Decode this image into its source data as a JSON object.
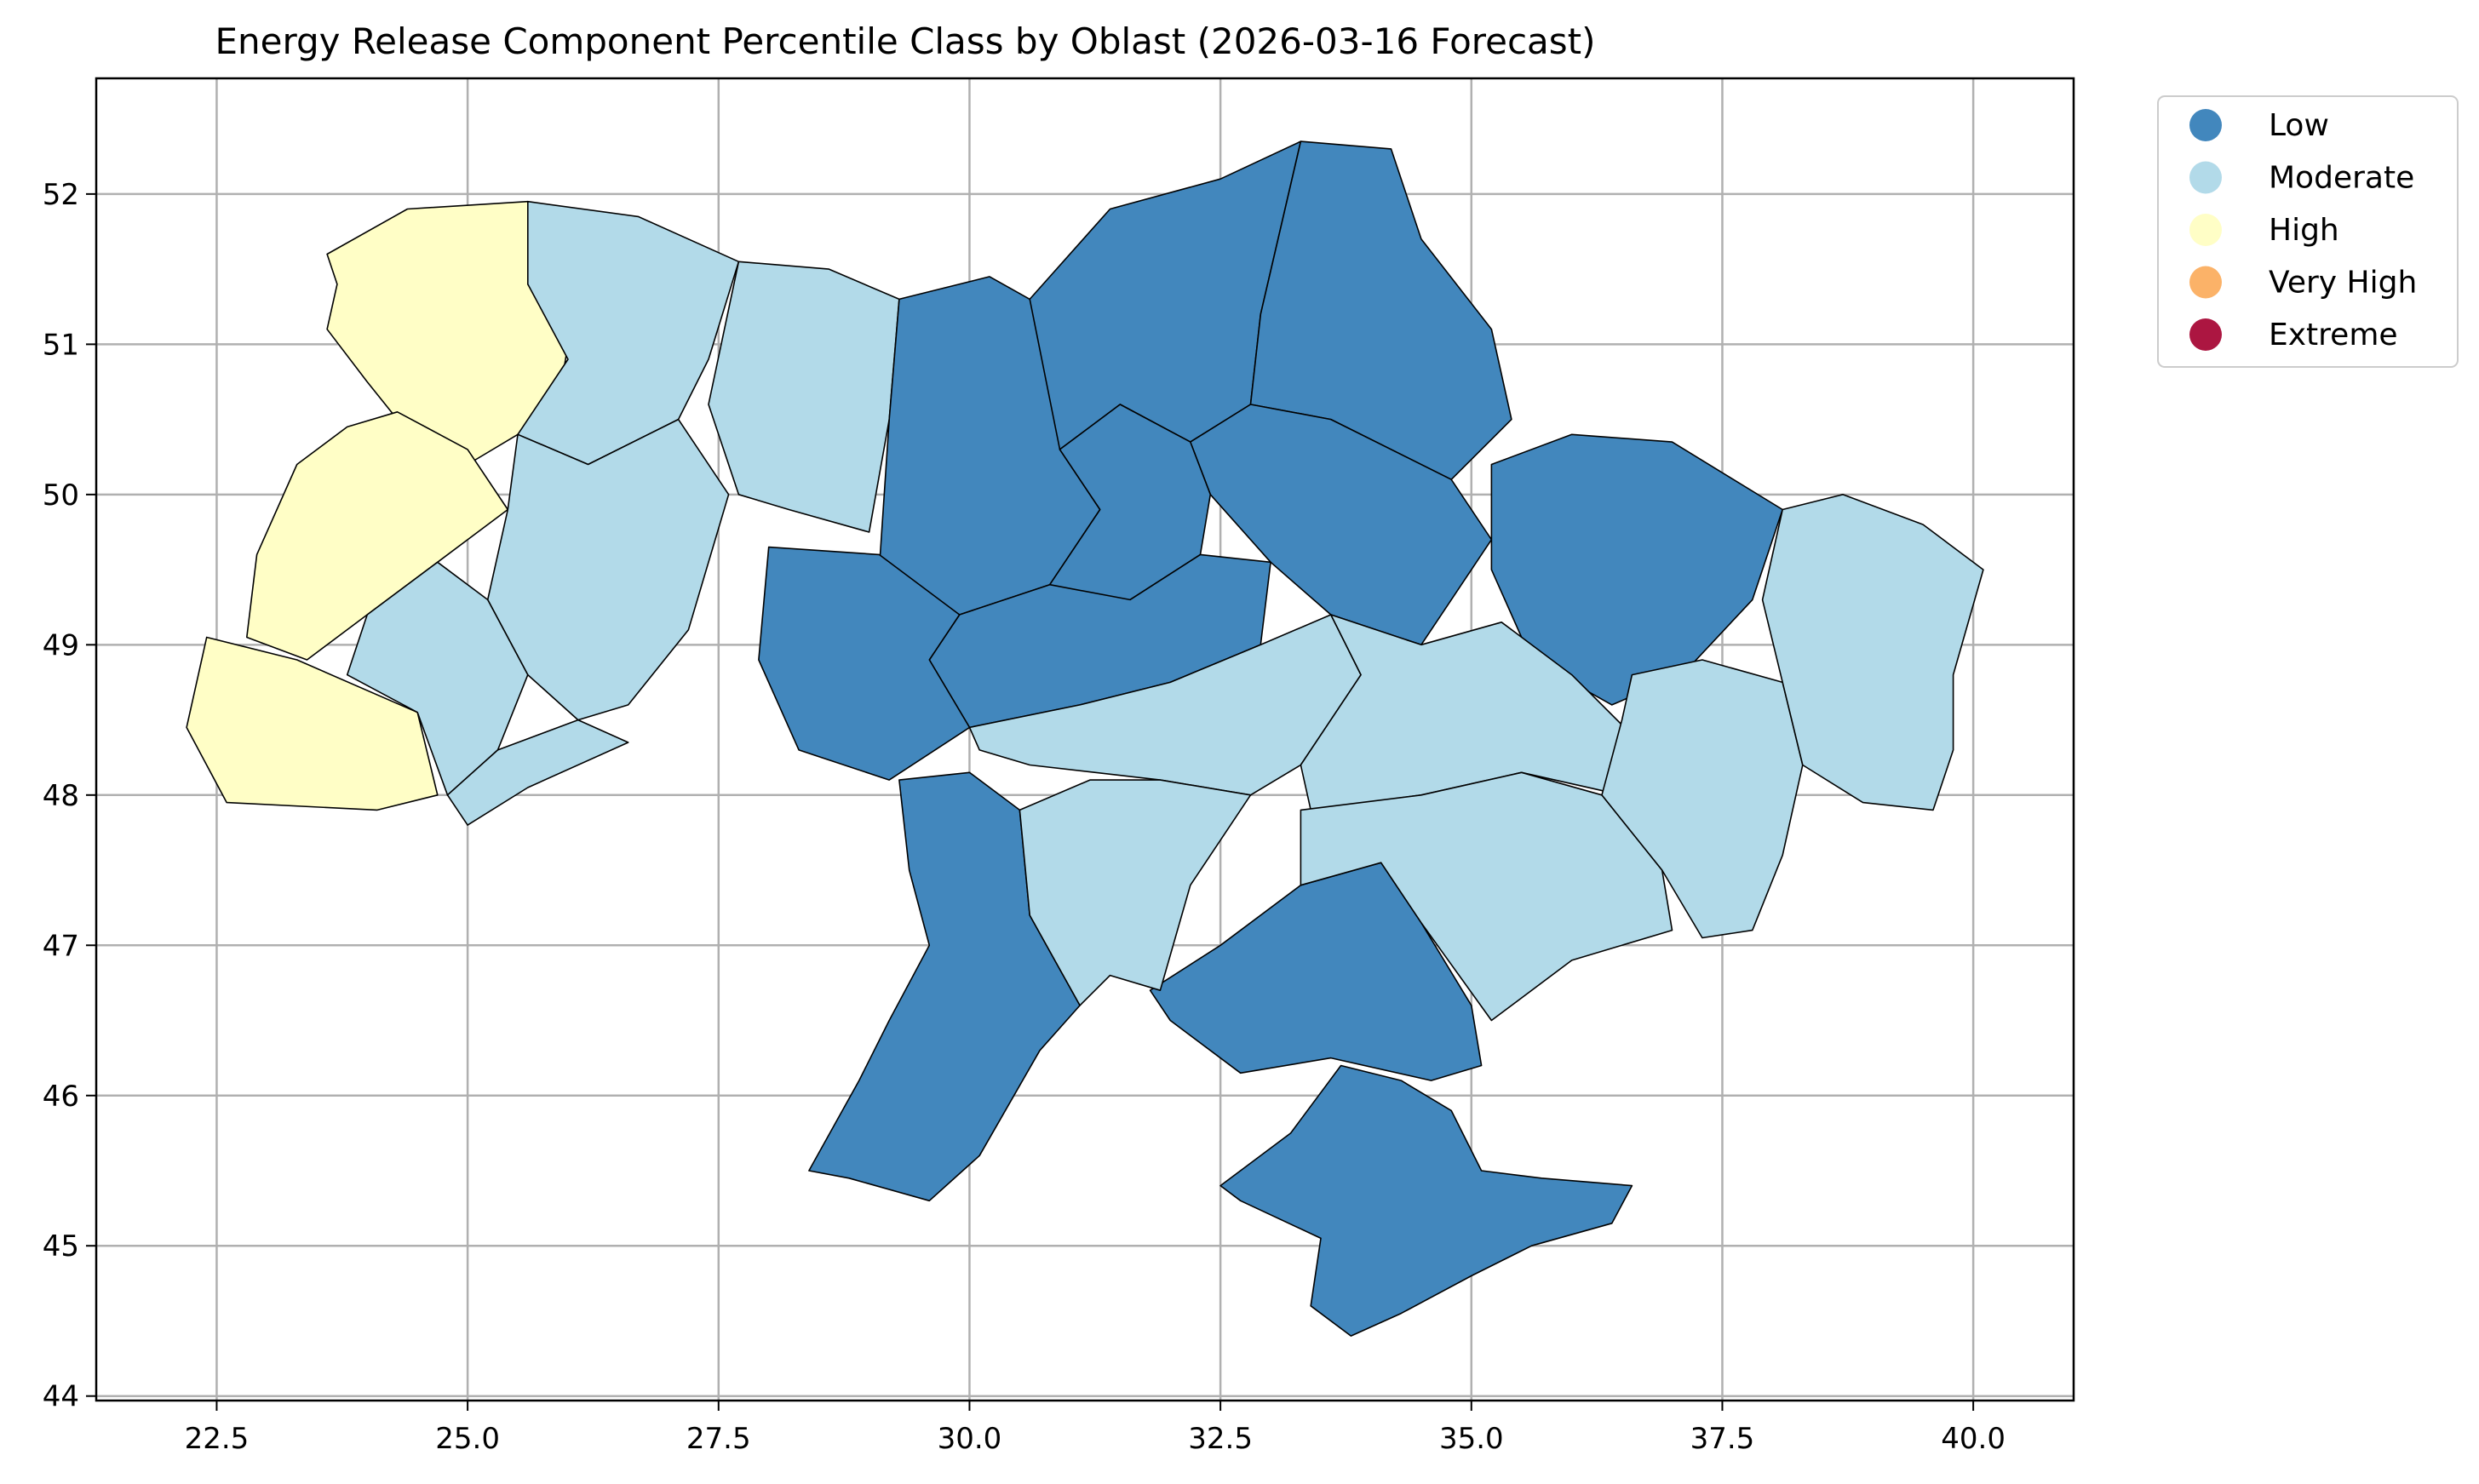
{
  "title": "Energy Release Component Percentile Class by Oblast (2026-03-16 Forecast)",
  "chart_data": {
    "type": "choropleth",
    "title": "Energy Release Component Percentile Class by Oblast (2026-03-16 Forecast)",
    "xlim": [
      21.3,
      41.0
    ],
    "ylim": [
      43.97,
      52.77
    ],
    "x_ticks": [
      22.5,
      25.0,
      27.5,
      30.0,
      32.5,
      35.0,
      37.5,
      40.0
    ],
    "x_tick_labels": [
      "22.5",
      "25.0",
      "27.5",
      "30.0",
      "32.5",
      "35.0",
      "37.5",
      "40.0"
    ],
    "y_ticks": [
      44,
      45,
      46,
      47,
      48,
      49,
      50,
      51,
      52
    ],
    "y_tick_labels": [
      "44",
      "45",
      "46",
      "47",
      "48",
      "49",
      "50",
      "51",
      "52"
    ],
    "grid": true,
    "legend": {
      "placement": "outside-top-right",
      "entries": [
        {
          "label": "Low",
          "color": "#4287BD"
        },
        {
          "label": "Moderate",
          "color": "#B2DAE9"
        },
        {
          "label": "High",
          "color": "#FFFEC6"
        },
        {
          "label": "Very High",
          "color": "#FBB268"
        },
        {
          "label": "Extreme",
          "color": "#AC1641"
        }
      ]
    },
    "class_colors": {
      "Low": "#4287BD",
      "Moderate": "#B2DAE9",
      "High": "#FFFEC6",
      "Very High": "#FBB268",
      "Extreme": "#AC1641"
    },
    "regions": [
      {
        "class": "High",
        "outline": [
          [
            23.6,
            51.6
          ],
          [
            24.4,
            51.9
          ],
          [
            25.6,
            51.95
          ],
          [
            25.6,
            51.4
          ],
          [
            26.0,
            51.0
          ],
          [
            25.9,
            50.6
          ],
          [
            25.5,
            50.4
          ],
          [
            25.0,
            50.2
          ],
          [
            24.3,
            50.5
          ],
          [
            24.0,
            50.75
          ],
          [
            23.6,
            51.1
          ],
          [
            23.7,
            51.4
          ]
        ]
      },
      {
        "class": "High",
        "outline": [
          [
            23.8,
            50.45
          ],
          [
            24.3,
            50.55
          ],
          [
            25.0,
            50.3
          ],
          [
            25.4,
            49.9
          ],
          [
            24.7,
            49.55
          ],
          [
            24.0,
            49.2
          ],
          [
            23.4,
            48.9
          ],
          [
            22.8,
            49.05
          ],
          [
            22.9,
            49.6
          ],
          [
            23.3,
            50.2
          ]
        ]
      },
      {
        "class": "High",
        "outline": [
          [
            22.4,
            49.05
          ],
          [
            23.3,
            48.9
          ],
          [
            24.5,
            48.55
          ],
          [
            24.7,
            48.0
          ],
          [
            24.1,
            47.9
          ],
          [
            22.6,
            47.95
          ],
          [
            22.2,
            48.45
          ]
        ]
      },
      {
        "class": "Moderate",
        "outline": [
          [
            25.6,
            51.95
          ],
          [
            26.7,
            51.85
          ],
          [
            27.7,
            51.55
          ],
          [
            27.4,
            50.9
          ],
          [
            27.1,
            50.5
          ],
          [
            26.2,
            50.2
          ],
          [
            25.5,
            50.4
          ],
          [
            26.0,
            50.9
          ],
          [
            25.6,
            51.4
          ]
        ]
      },
      {
        "class": "Moderate",
        "outline": [
          [
            27.7,
            51.55
          ],
          [
            28.6,
            51.5
          ],
          [
            29.3,
            51.3
          ],
          [
            29.2,
            50.5
          ],
          [
            29.0,
            49.75
          ],
          [
            28.2,
            49.9
          ],
          [
            27.7,
            50.0
          ],
          [
            27.4,
            50.6
          ]
        ]
      },
      {
        "class": "Moderate",
        "outline": [
          [
            25.5,
            50.4
          ],
          [
            26.2,
            50.2
          ],
          [
            27.1,
            50.5
          ],
          [
            27.6,
            50.0
          ],
          [
            27.2,
            49.1
          ],
          [
            26.6,
            48.6
          ],
          [
            26.1,
            48.5
          ],
          [
            25.6,
            48.8
          ],
          [
            25.2,
            49.3
          ],
          [
            25.4,
            49.9
          ]
        ]
      },
      {
        "class": "Moderate",
        "outline": [
          [
            24.0,
            49.2
          ],
          [
            24.7,
            49.55
          ],
          [
            25.2,
            49.3
          ],
          [
            25.6,
            48.8
          ],
          [
            25.3,
            48.3
          ],
          [
            24.8,
            48.0
          ],
          [
            24.5,
            48.55
          ],
          [
            23.8,
            48.8
          ]
        ]
      },
      {
        "class": "Moderate",
        "outline": [
          [
            24.8,
            48.0
          ],
          [
            25.3,
            48.3
          ],
          [
            26.1,
            48.5
          ],
          [
            26.6,
            48.35
          ],
          [
            25.6,
            48.05
          ],
          [
            25.0,
            47.8
          ]
        ]
      },
      {
        "class": "Low",
        "outline": [
          [
            29.3,
            51.3
          ],
          [
            30.2,
            51.45
          ],
          [
            30.6,
            51.3
          ],
          [
            31.0,
            50.8
          ],
          [
            30.9,
            50.3
          ],
          [
            31.3,
            49.9
          ],
          [
            30.8,
            49.4
          ],
          [
            29.9,
            49.2
          ],
          [
            29.1,
            49.5
          ],
          [
            29.2,
            50.5
          ]
        ]
      },
      {
        "class": "Low",
        "outline": [
          [
            30.6,
            51.3
          ],
          [
            31.4,
            51.9
          ],
          [
            32.5,
            52.1
          ],
          [
            33.3,
            52.35
          ],
          [
            32.9,
            51.2
          ],
          [
            32.8,
            50.6
          ],
          [
            32.2,
            50.35
          ],
          [
            31.5,
            50.6
          ],
          [
            30.9,
            50.3
          ]
        ]
      },
      {
        "class": "Low",
        "outline": [
          [
            33.3,
            52.35
          ],
          [
            34.2,
            52.3
          ],
          [
            34.5,
            51.7
          ],
          [
            35.2,
            51.1
          ],
          [
            35.4,
            50.5
          ],
          [
            34.8,
            50.1
          ],
          [
            33.6,
            50.5
          ],
          [
            32.8,
            50.6
          ],
          [
            32.9,
            51.2
          ]
        ]
      },
      {
        "class": "Low",
        "outline": [
          [
            32.2,
            50.35
          ],
          [
            32.8,
            50.6
          ],
          [
            33.6,
            50.5
          ],
          [
            34.8,
            50.1
          ],
          [
            35.2,
            49.7
          ],
          [
            34.5,
            49.0
          ],
          [
            33.6,
            49.2
          ],
          [
            33.0,
            49.55
          ],
          [
            32.4,
            50.0
          ]
        ]
      },
      {
        "class": "Low",
        "outline": [
          [
            35.2,
            50.2
          ],
          [
            36.0,
            50.4
          ],
          [
            37.0,
            50.35
          ],
          [
            38.1,
            49.9
          ],
          [
            37.8,
            49.3
          ],
          [
            37.1,
            48.8
          ],
          [
            36.4,
            48.6
          ],
          [
            35.6,
            48.9
          ],
          [
            35.2,
            49.5
          ]
        ]
      },
      {
        "class": "Low",
        "outline": [
          [
            30.9,
            50.3
          ],
          [
            31.5,
            50.6
          ],
          [
            32.2,
            50.35
          ],
          [
            32.4,
            50.0
          ],
          [
            32.3,
            49.6
          ],
          [
            31.6,
            49.3
          ],
          [
            30.9,
            49.1
          ],
          [
            30.8,
            49.4
          ],
          [
            31.3,
            49.9
          ]
        ]
      },
      {
        "class": "Low",
        "outline": [
          [
            29.9,
            49.2
          ],
          [
            30.8,
            49.4
          ],
          [
            31.6,
            49.3
          ],
          [
            32.3,
            49.6
          ],
          [
            33.0,
            49.55
          ],
          [
            32.9,
            49.0
          ],
          [
            32.0,
            48.75
          ],
          [
            31.1,
            48.6
          ],
          [
            30.0,
            48.45
          ],
          [
            29.6,
            48.9
          ]
        ]
      },
      {
        "class": "Low",
        "outline": [
          [
            28.0,
            49.65
          ],
          [
            29.1,
            49.6
          ],
          [
            29.9,
            49.2
          ],
          [
            29.6,
            48.9
          ],
          [
            30.0,
            48.45
          ],
          [
            29.2,
            48.1
          ],
          [
            28.3,
            48.3
          ],
          [
            27.9,
            48.9
          ]
        ]
      },
      {
        "class": "Low",
        "outline": [
          [
            29.3,
            48.1
          ],
          [
            30.0,
            48.15
          ],
          [
            30.5,
            47.9
          ],
          [
            30.6,
            47.2
          ],
          [
            31.1,
            46.6
          ],
          [
            30.7,
            46.3
          ],
          [
            30.1,
            45.6
          ],
          [
            29.6,
            45.3
          ],
          [
            28.8,
            45.45
          ],
          [
            28.4,
            45.5
          ],
          [
            28.9,
            46.1
          ],
          [
            29.2,
            46.5
          ],
          [
            29.6,
            47.0
          ],
          [
            29.4,
            47.5
          ]
        ]
      },
      {
        "class": "Low",
        "outline": [
          [
            31.8,
            46.7
          ],
          [
            32.5,
            47.0
          ],
          [
            33.3,
            47.4
          ],
          [
            34.1,
            47.55
          ],
          [
            34.5,
            47.15
          ],
          [
            35.0,
            46.6
          ],
          [
            35.1,
            46.2
          ],
          [
            34.6,
            46.1
          ],
          [
            33.6,
            46.25
          ],
          [
            32.7,
            46.15
          ],
          [
            32.0,
            46.5
          ]
        ]
      },
      {
        "class": "Low",
        "outline": [
          [
            32.5,
            45.4
          ],
          [
            33.2,
            45.75
          ],
          [
            33.7,
            46.2
          ],
          [
            34.3,
            46.1
          ],
          [
            34.8,
            45.9
          ],
          [
            35.1,
            45.5
          ],
          [
            35.7,
            45.45
          ],
          [
            36.6,
            45.4
          ],
          [
            36.4,
            45.15
          ],
          [
            35.6,
            45.0
          ],
          [
            35.0,
            44.8
          ],
          [
            34.3,
            44.55
          ],
          [
            33.8,
            44.4
          ],
          [
            33.4,
            44.6
          ],
          [
            33.5,
            45.05
          ],
          [
            32.7,
            45.3
          ]
        ]
      },
      {
        "class": "Moderate",
        "outline": [
          [
            30.0,
            48.45
          ],
          [
            31.1,
            48.6
          ],
          [
            32.0,
            48.75
          ],
          [
            32.9,
            49.0
          ],
          [
            33.6,
            49.2
          ],
          [
            33.9,
            48.8
          ],
          [
            33.3,
            48.2
          ],
          [
            32.8,
            48.0
          ],
          [
            31.9,
            48.1
          ],
          [
            30.6,
            48.2
          ],
          [
            30.1,
            48.3
          ]
        ]
      },
      {
        "class": "Moderate",
        "outline": [
          [
            30.5,
            47.9
          ],
          [
            31.2,
            48.1
          ],
          [
            31.9,
            48.1
          ],
          [
            32.8,
            48.0
          ],
          [
            32.2,
            47.4
          ],
          [
            31.9,
            46.7
          ],
          [
            31.4,
            46.8
          ],
          [
            31.1,
            46.6
          ],
          [
            30.6,
            47.2
          ]
        ]
      },
      {
        "class": "Moderate",
        "outline": [
          [
            33.6,
            49.2
          ],
          [
            34.5,
            49.0
          ],
          [
            35.3,
            49.15
          ],
          [
            36.0,
            48.8
          ],
          [
            36.6,
            48.4
          ],
          [
            36.5,
            48.0
          ],
          [
            35.5,
            48.15
          ],
          [
            34.5,
            48.0
          ],
          [
            33.4,
            47.9
          ],
          [
            33.3,
            48.2
          ],
          [
            33.9,
            48.8
          ]
        ]
      },
      {
        "class": "Moderate",
        "outline": [
          [
            33.3,
            47.9
          ],
          [
            34.5,
            48.0
          ],
          [
            35.5,
            48.15
          ],
          [
            36.3,
            48.0
          ],
          [
            36.9,
            47.5
          ],
          [
            37.0,
            47.1
          ],
          [
            36.0,
            46.9
          ],
          [
            35.2,
            46.5
          ],
          [
            34.5,
            47.15
          ],
          [
            34.1,
            47.55
          ],
          [
            33.3,
            47.4
          ]
        ]
      },
      {
        "class": "Moderate",
        "outline": [
          [
            36.6,
            48.8
          ],
          [
            37.3,
            48.9
          ],
          [
            38.1,
            48.75
          ],
          [
            38.3,
            48.2
          ],
          [
            38.1,
            47.6
          ],
          [
            37.8,
            47.1
          ],
          [
            37.3,
            47.05
          ],
          [
            36.9,
            47.5
          ],
          [
            36.3,
            48.0
          ],
          [
            36.5,
            48.5
          ]
        ]
      },
      {
        "class": "Moderate",
        "outline": [
          [
            38.1,
            49.9
          ],
          [
            38.7,
            50.0
          ],
          [
            39.5,
            49.8
          ],
          [
            40.1,
            49.5
          ],
          [
            39.8,
            48.8
          ],
          [
            39.8,
            48.3
          ],
          [
            39.6,
            47.9
          ],
          [
            38.9,
            47.95
          ],
          [
            38.3,
            48.2
          ],
          [
            38.1,
            48.75
          ],
          [
            37.9,
            49.3
          ]
        ]
      }
    ]
  }
}
